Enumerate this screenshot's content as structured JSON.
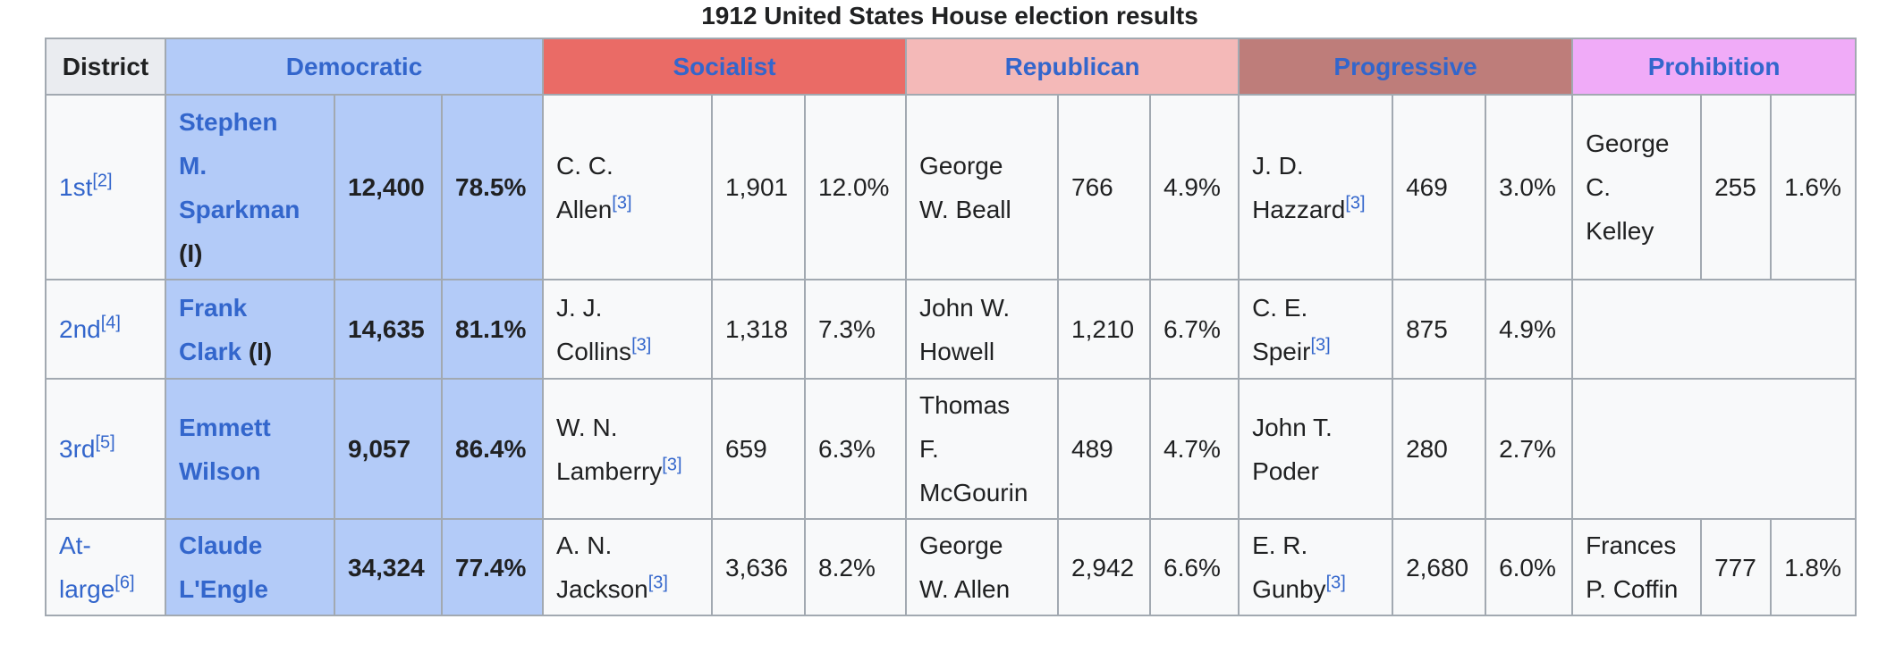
{
  "caption": "1912 United States House election results",
  "headers": {
    "district": "District",
    "parties": [
      {
        "name": "Democratic",
        "color": "#b3cbf8"
      },
      {
        "name": "Socialist",
        "color": "#ea6b66"
      },
      {
        "name": "Republican",
        "color": "#f4b9b8"
      },
      {
        "name": "Progressive",
        "color": "#be7d7a"
      },
      {
        "name": "Prohibition",
        "color": "#f0abf8"
      }
    ]
  },
  "rows": [
    {
      "district": "1st",
      "district_ref": "[2]",
      "democratic": {
        "name": [
          "Stephen",
          "M.",
          "Sparkman"
        ],
        "suffix": "(I)",
        "suffix_newline": true,
        "votes": "12,400",
        "pct": "78.5%"
      },
      "socialist": {
        "name": [
          "C. C.",
          "Allen"
        ],
        "ref": "[3]",
        "votes": "1,901",
        "pct": "12.0%"
      },
      "republican": {
        "name": [
          "George",
          "W. Beall"
        ],
        "ref": "",
        "votes": "766",
        "pct": "4.9%"
      },
      "progressive": {
        "name": [
          "J. D.",
          "Hazzard"
        ],
        "ref": "[3]",
        "votes": "469",
        "pct": "3.0%"
      },
      "prohibition": {
        "name": [
          "George",
          "C.",
          "Kelley"
        ],
        "ref": "",
        "votes": "255",
        "pct": "1.6%"
      }
    },
    {
      "district": "2nd",
      "district_ref": "[4]",
      "democratic": {
        "name": [
          "Frank",
          "Clark"
        ],
        "suffix": "(I)",
        "suffix_newline": false,
        "votes": "14,635",
        "pct": "81.1%"
      },
      "socialist": {
        "name": [
          "J. J.",
          "Collins"
        ],
        "ref": "[3]",
        "votes": "1,318",
        "pct": "7.3%"
      },
      "republican": {
        "name": [
          "John W.",
          "Howell"
        ],
        "ref": "",
        "votes": "1,210",
        "pct": "6.7%"
      },
      "progressive": {
        "name": [
          "C. E.",
          "Speir"
        ],
        "ref": "[3]",
        "votes": "875",
        "pct": "4.9%"
      },
      "prohibition": null
    },
    {
      "district": "3rd",
      "district_ref": "[5]",
      "democratic": {
        "name": [
          "Emmett",
          "Wilson"
        ],
        "suffix": "",
        "suffix_newline": false,
        "votes": "9,057",
        "pct": "86.4%"
      },
      "socialist": {
        "name": [
          "W. N.",
          "Lamberry"
        ],
        "ref": "[3]",
        "votes": "659",
        "pct": "6.3%"
      },
      "republican": {
        "name": [
          "Thomas",
          "F.",
          "McGourin"
        ],
        "ref": "",
        "votes": "489",
        "pct": "4.7%"
      },
      "progressive": {
        "name": [
          "John T.",
          "Poder"
        ],
        "ref": "",
        "votes": "280",
        "pct": "2.7%"
      },
      "prohibition": null
    },
    {
      "district": "At-large",
      "district_lines": [
        "At-",
        "large"
      ],
      "district_ref": "[6]",
      "democratic": {
        "name": [
          "Claude",
          "L'Engle"
        ],
        "suffix": "",
        "suffix_newline": false,
        "votes": "34,324",
        "pct": "77.4%"
      },
      "socialist": {
        "name": [
          "A. N.",
          "Jackson"
        ],
        "ref": "[3]",
        "votes": "3,636",
        "pct": "8.2%"
      },
      "republican": {
        "name": [
          "George",
          "W. Allen"
        ],
        "ref": "",
        "votes": "2,942",
        "pct": "6.6%"
      },
      "progressive": {
        "name": [
          "E. R.",
          "Gunby"
        ],
        "ref": "[3]",
        "votes": "2,680",
        "pct": "6.0%"
      },
      "prohibition": {
        "name": [
          "Frances",
          "P. Coffin"
        ],
        "ref": "",
        "votes": "777",
        "pct": "1.8%"
      }
    }
  ]
}
